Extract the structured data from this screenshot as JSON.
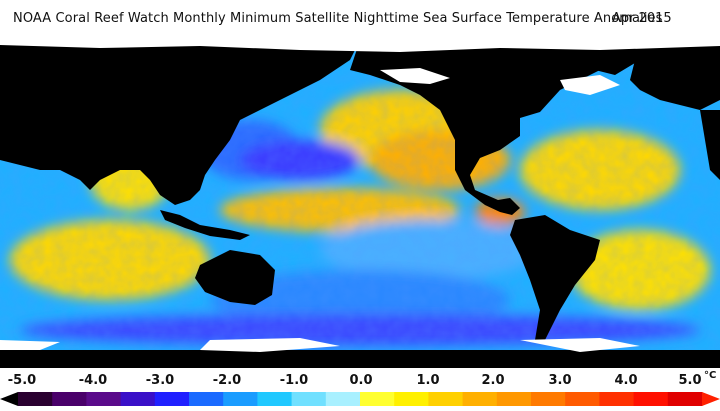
{
  "title": {
    "text": "NOAA Coral Reef Watch Monthly Minimum Satellite Nighttime Sea Surface Temperature Anomalies",
    "date": "Apr 2015"
  },
  "legend": {
    "ticks": [
      "-5.0",
      "-4.0",
      "-3.0",
      "-2.0",
      "-1.0",
      "0.0",
      "1.0",
      "2.0",
      "3.0",
      "4.0",
      "5.0"
    ],
    "unit": "°C",
    "colors": [
      "#2a0030",
      "#4a006a",
      "#5a0a8a",
      "#3a10c8",
      "#2020ff",
      "#1a6aff",
      "#1a9cff",
      "#20c8ff",
      "#70e0ff",
      "#a8f0ff",
      "#ffff30",
      "#fff000",
      "#ffd000",
      "#ffb000",
      "#ff9800",
      "#ff7a00",
      "#ff5a00",
      "#ff3000",
      "#ff1000",
      "#e00000"
    ]
  }
}
